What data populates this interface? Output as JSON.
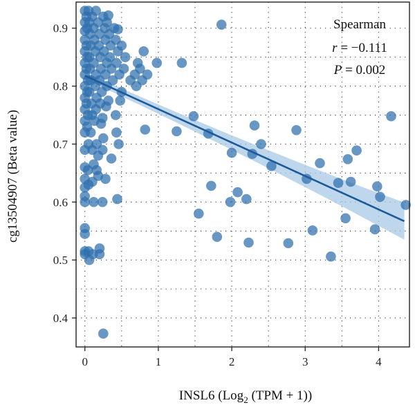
{
  "chart_data": {
    "type": "scatter",
    "title": "",
    "xlabel_main": "INSL6 (Log",
    "xlabel_sub": "2",
    "xlabel_tail": " (TPM + 1))",
    "ylabel": "cg13504907 (Beta value)",
    "xlim": [
      -0.12,
      4.42
    ],
    "ylim": [
      0.35,
      0.945
    ],
    "x_ticks": [
      0,
      1,
      2,
      3,
      4
    ],
    "y_ticks": [
      0.4,
      0.5,
      0.6,
      0.7,
      0.8,
      0.9
    ],
    "grid": "dotted",
    "annotation": {
      "method": "Spearman",
      "r_label": "r",
      "r_value": " = −0.111",
      "p_label": "P",
      "p_value": " = 0.002",
      "position": "top-right"
    },
    "colors": {
      "points": "#2e6fad",
      "fit_line": "#1c5a99",
      "ci_band": "#a9c9e6"
    },
    "fit": {
      "x_start": 0.0,
      "y_start": 0.818,
      "x_end": 4.35,
      "y_end": 0.567,
      "ci_start": 0.006,
      "ci_end": 0.032
    },
    "points": [
      [
        0.0,
        0.93
      ],
      [
        0.0,
        0.91
      ],
      [
        0.0,
        0.895
      ],
      [
        0.0,
        0.88
      ],
      [
        0.0,
        0.86
      ],
      [
        0.0,
        0.84
      ],
      [
        0.0,
        0.82
      ],
      [
        0.0,
        0.8
      ],
      [
        0.0,
        0.78
      ],
      [
        0.0,
        0.76
      ],
      [
        0.0,
        0.74
      ],
      [
        0.0,
        0.72
      ],
      [
        0.0,
        0.69
      ],
      [
        0.0,
        0.66
      ],
      [
        0.0,
        0.64
      ],
      [
        0.0,
        0.625
      ],
      [
        0.0,
        0.61
      ],
      [
        0.0,
        0.6
      ],
      [
        0.0,
        0.555
      ],
      [
        0.0,
        0.545
      ],
      [
        0.0,
        0.515
      ],
      [
        0.0,
        0.51
      ],
      [
        0.02,
        0.92
      ],
      [
        0.03,
        0.9
      ],
      [
        0.02,
        0.87
      ],
      [
        0.03,
        0.85
      ],
      [
        0.02,
        0.83
      ],
      [
        0.04,
        0.81
      ],
      [
        0.03,
        0.79
      ],
      [
        0.02,
        0.77
      ],
      [
        0.04,
        0.75
      ],
      [
        0.03,
        0.73
      ],
      [
        0.05,
        0.7
      ],
      [
        0.04,
        0.655
      ],
      [
        0.05,
        0.63
      ],
      [
        0.05,
        0.515
      ],
      [
        0.06,
        0.5
      ],
      [
        0.05,
        0.93
      ],
      [
        0.06,
        0.91
      ],
      [
        0.07,
        0.89
      ],
      [
        0.08,
        0.87
      ],
      [
        0.06,
        0.85
      ],
      [
        0.07,
        0.83
      ],
      [
        0.08,
        0.81
      ],
      [
        0.06,
        0.79
      ],
      [
        0.09,
        0.77
      ],
      [
        0.1,
        0.75
      ],
      [
        0.08,
        0.72
      ],
      [
        0.1,
        0.69
      ],
      [
        0.12,
        0.665
      ],
      [
        0.1,
        0.635
      ],
      [
        0.12,
        0.6
      ],
      [
        0.11,
        0.51
      ],
      [
        0.1,
        0.92
      ],
      [
        0.12,
        0.9
      ],
      [
        0.13,
        0.88
      ],
      [
        0.14,
        0.86
      ],
      [
        0.12,
        0.84
      ],
      [
        0.15,
        0.82
      ],
      [
        0.14,
        0.8
      ],
      [
        0.16,
        0.78
      ],
      [
        0.15,
        0.76
      ],
      [
        0.13,
        0.74
      ],
      [
        0.16,
        0.7
      ],
      [
        0.18,
        0.68
      ],
      [
        0.16,
        0.655
      ],
      [
        0.18,
        0.645
      ],
      [
        0.2,
        0.52
      ],
      [
        0.2,
        0.51
      ],
      [
        0.15,
        0.93
      ],
      [
        0.18,
        0.91
      ],
      [
        0.2,
        0.89
      ],
      [
        0.19,
        0.87
      ],
      [
        0.21,
        0.85
      ],
      [
        0.22,
        0.83
      ],
      [
        0.2,
        0.81
      ],
      [
        0.23,
        0.79
      ],
      [
        0.21,
        0.77
      ],
      [
        0.24,
        0.745
      ],
      [
        0.22,
        0.735
      ],
      [
        0.25,
        0.71
      ],
      [
        0.24,
        0.69
      ],
      [
        0.28,
        0.64
      ],
      [
        0.24,
        0.6
      ],
      [
        0.25,
        0.92
      ],
      [
        0.27,
        0.9
      ],
      [
        0.28,
        0.88
      ],
      [
        0.26,
        0.86
      ],
      [
        0.3,
        0.84
      ],
      [
        0.28,
        0.82
      ],
      [
        0.3,
        0.8
      ],
      [
        0.32,
        0.775
      ],
      [
        0.29,
        0.765
      ],
      [
        0.36,
        0.675
      ],
      [
        0.3,
        0.91
      ],
      [
        0.33,
        0.89
      ],
      [
        0.35,
        0.87
      ],
      [
        0.34,
        0.85
      ],
      [
        0.36,
        0.83
      ],
      [
        0.38,
        0.81
      ],
      [
        0.42,
        0.75
      ],
      [
        0.43,
        0.72
      ],
      [
        0.46,
        0.7
      ],
      [
        0.44,
        0.605
      ],
      [
        0.4,
        0.9
      ],
      [
        0.42,
        0.88
      ],
      [
        0.45,
        0.86
      ],
      [
        0.43,
        0.84
      ],
      [
        0.47,
        0.82
      ],
      [
        0.5,
        0.79
      ],
      [
        0.48,
        0.775
      ],
      [
        0.5,
        0.87
      ],
      [
        0.55,
        0.85
      ],
      [
        0.53,
        0.83
      ],
      [
        0.62,
        0.81
      ],
      [
        0.68,
        0.82
      ],
      [
        0.75,
        0.83
      ],
      [
        0.7,
        0.8
      ],
      [
        0.78,
        0.81
      ],
      [
        0.85,
        0.82
      ],
      [
        0.8,
        0.86
      ],
      [
        0.72,
        0.84
      ],
      [
        0.98,
        0.84
      ],
      [
        0.82,
        0.725
      ],
      [
        0.25,
        0.373
      ],
      [
        0.32,
        0.922
      ],
      [
        0.45,
        0.898
      ],
      [
        1.25,
        0.722
      ],
      [
        1.32,
        0.84
      ],
      [
        1.48,
        0.748
      ],
      [
        1.55,
        0.58
      ],
      [
        1.68,
        0.718
      ],
      [
        1.72,
        0.628
      ],
      [
        1.8,
        0.54
      ],
      [
        1.86,
        0.906
      ],
      [
        1.98,
        0.6
      ],
      [
        2.0,
        0.685
      ],
      [
        2.08,
        0.617
      ],
      [
        2.2,
        0.605
      ],
      [
        2.23,
        0.53
      ],
      [
        2.28,
        0.683
      ],
      [
        2.31,
        0.732
      ],
      [
        2.4,
        0.7
      ],
      [
        2.54,
        0.662
      ],
      [
        2.77,
        0.529
      ],
      [
        2.88,
        0.724
      ],
      [
        3.02,
        0.64
      ],
      [
        3.1,
        0.551
      ],
      [
        3.2,
        0.667
      ],
      [
        3.35,
        0.506
      ],
      [
        3.45,
        0.633
      ],
      [
        3.55,
        0.572
      ],
      [
        3.58,
        0.674
      ],
      [
        3.62,
        0.635
      ],
      [
        3.7,
        0.689
      ],
      [
        3.95,
        0.553
      ],
      [
        3.98,
        0.627
      ],
      [
        4.02,
        0.609
      ],
      [
        4.17,
        0.748
      ],
      [
        4.37,
        0.595
      ]
    ]
  }
}
